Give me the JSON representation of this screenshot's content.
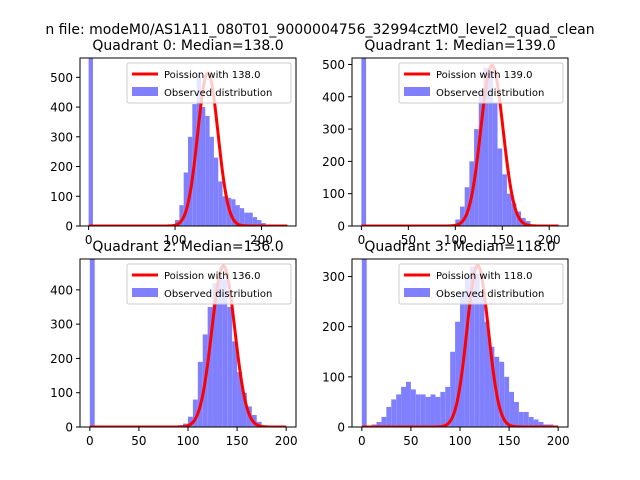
{
  "figure": {
    "suptitle": "n file: modeM0/AS1A11_080T01_9000004756_32994cztM0_level2_quad_clean"
  },
  "chart_data": [
    {
      "type": "bar",
      "title": "Quadrant 0: Median=138.0",
      "xlim": [
        -10,
        240
      ],
      "ylim": [
        0,
        565
      ],
      "xticks": [
        0,
        100,
        200
      ],
      "yticks": [
        0,
        100,
        200,
        300,
        400,
        500
      ],
      "bin_edges": [
        0,
        5,
        10,
        15,
        20,
        25,
        30,
        35,
        40,
        45,
        50,
        55,
        60,
        65,
        70,
        75,
        80,
        85,
        90,
        95,
        100,
        105,
        110,
        115,
        120,
        125,
        130,
        135,
        140,
        145,
        150,
        155,
        160,
        165,
        170,
        175,
        180,
        185,
        190,
        195,
        200,
        205,
        210,
        215,
        220,
        225,
        230
      ],
      "observed": [
        565,
        0,
        0,
        0,
        0,
        0,
        0,
        0,
        0,
        0,
        0,
        0,
        0,
        0,
        0,
        0,
        0,
        0,
        3,
        5,
        20,
        70,
        180,
        300,
        410,
        505,
        400,
        370,
        300,
        230,
        150,
        100,
        95,
        90,
        70,
        60,
        45,
        45,
        30,
        20,
        10,
        5,
        0,
        0,
        0,
        0
      ],
      "poisson": {
        "label": "Poission with 138.0",
        "mu": 138.0,
        "peak": 515,
        "xmax": 230
      },
      "legend": {
        "series": [
          "Poission with 138.0",
          "Observed distribution"
        ],
        "loc": "upper right"
      }
    },
    {
      "type": "bar",
      "title": "Quadrant 1: Median=139.0",
      "xlim": [
        -10,
        220
      ],
      "ylim": [
        0,
        520
      ],
      "xticks": [
        0,
        50,
        100,
        150,
        200
      ],
      "yticks": [
        0,
        100,
        200,
        300,
        400,
        500
      ],
      "bin_edges": [
        0,
        5,
        10,
        15,
        20,
        25,
        30,
        35,
        40,
        45,
        50,
        55,
        60,
        65,
        70,
        75,
        80,
        85,
        90,
        95,
        100,
        105,
        110,
        115,
        120,
        125,
        130,
        135,
        140,
        145,
        150,
        155,
        160,
        165,
        170,
        175,
        180,
        185,
        190,
        195,
        200,
        205,
        210
      ],
      "observed": [
        520,
        0,
        0,
        0,
        0,
        0,
        0,
        0,
        0,
        0,
        0,
        0,
        0,
        0,
        0,
        0,
        0,
        0,
        0,
        5,
        20,
        60,
        120,
        200,
        300,
        420,
        490,
        480,
        380,
        240,
        160,
        100,
        70,
        45,
        25,
        15,
        5,
        0,
        0,
        0,
        0,
        0
      ],
      "poisson": {
        "label": "Poission with 139.0",
        "mu": 139.0,
        "peak": 497,
        "xmax": 210
      },
      "legend": {
        "series": [
          "Poission with 139.0",
          "Observed distribution"
        ],
        "loc": "upper right"
      }
    },
    {
      "type": "bar",
      "title": "Quadrant 2: Median=136.0",
      "xlim": [
        -10,
        210
      ],
      "ylim": [
        0,
        490
      ],
      "xticks": [
        0,
        50,
        100,
        150,
        200
      ],
      "yticks": [
        0,
        100,
        200,
        300,
        400
      ],
      "bin_edges": [
        0,
        5,
        10,
        15,
        20,
        25,
        30,
        35,
        40,
        45,
        50,
        55,
        60,
        65,
        70,
        75,
        80,
        85,
        90,
        95,
        100,
        105,
        110,
        115,
        120,
        125,
        130,
        135,
        140,
        145,
        150,
        155,
        160,
        165,
        170,
        175,
        180,
        185,
        190,
        195,
        200
      ],
      "observed": [
        490,
        0,
        0,
        0,
        0,
        0,
        0,
        0,
        0,
        0,
        0,
        0,
        0,
        0,
        0,
        0,
        0,
        0,
        5,
        10,
        30,
        80,
        190,
        270,
        350,
        420,
        440,
        430,
        350,
        250,
        160,
        100,
        60,
        35,
        15,
        5,
        2,
        0,
        0,
        0
      ],
      "poisson": {
        "label": "Poission with 136.0",
        "mu": 136.0,
        "peak": 470,
        "xmax": 200
      },
      "legend": {
        "series": [
          "Poission with 136.0",
          "Observed distribution"
        ],
        "loc": "upper right"
      }
    },
    {
      "type": "bar",
      "title": "Quadrant 3: Median=118.0",
      "xlim": [
        -10,
        210
      ],
      "ylim": [
        0,
        335
      ],
      "xticks": [
        0,
        50,
        100,
        150,
        200
      ],
      "yticks": [
        0,
        100,
        200,
        300
      ],
      "bin_edges": [
        0,
        5,
        10,
        15,
        20,
        25,
        30,
        35,
        40,
        45,
        50,
        55,
        60,
        65,
        70,
        75,
        80,
        85,
        90,
        95,
        100,
        105,
        110,
        115,
        120,
        125,
        130,
        135,
        140,
        145,
        150,
        155,
        160,
        165,
        170,
        175,
        180,
        185,
        190,
        195,
        200
      ],
      "observed": [
        335,
        0,
        5,
        10,
        20,
        40,
        55,
        65,
        80,
        90,
        75,
        65,
        65,
        60,
        65,
        60,
        70,
        80,
        150,
        210,
        270,
        300,
        320,
        305,
        260,
        210,
        160,
        140,
        130,
        100,
        70,
        50,
        30,
        30,
        20,
        15,
        10,
        5,
        5,
        2
      ],
      "poisson": {
        "label": "Poission with 118.0",
        "mu": 118.0,
        "peak": 322,
        "xmax": 200
      },
      "legend": {
        "series": [
          "Poission with 118.0",
          "Observed distribution"
        ],
        "loc": "upper right"
      }
    }
  ],
  "style": {
    "bar_color": "#8080ff",
    "line_color": "#ff0000",
    "axis_color": "#000000",
    "background": "#ffffff"
  }
}
